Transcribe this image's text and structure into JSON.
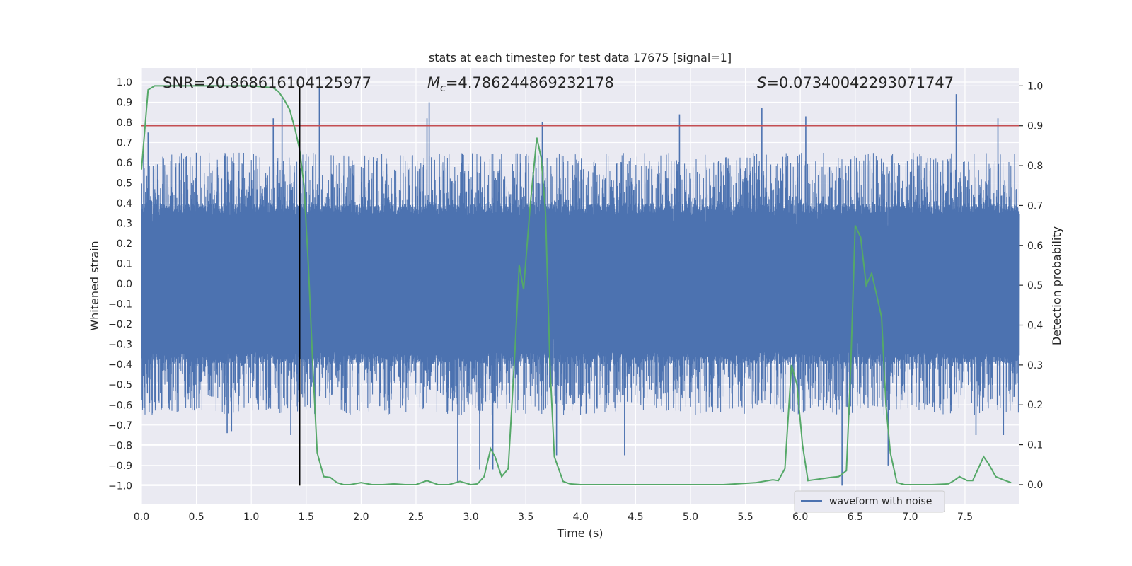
{
  "chart_data": {
    "type": "line",
    "title": "stats at each timestep for test data 17675 [signal=1]",
    "xlabel": "Time (s)",
    "ylabel": "Whitened strain",
    "y2label": "Detection probability",
    "xlim": [
      0.0,
      7.99
    ],
    "ylim": [
      -1.09,
      1.07
    ],
    "y2lim": [
      -0.048,
      1.045
    ],
    "x_ticks": [
      0.0,
      0.5,
      1.0,
      1.5,
      2.0,
      2.5,
      3.0,
      3.5,
      4.0,
      4.5,
      5.0,
      5.5,
      6.0,
      6.5,
      7.0,
      7.5
    ],
    "x_tick_labels": [
      "0.0",
      "0.5",
      "1.0",
      "1.5",
      "2.0",
      "2.5",
      "3.0",
      "3.5",
      "4.0",
      "4.5",
      "5.0",
      "5.5",
      "6.0",
      "6.5",
      "7.0",
      "7.5"
    ],
    "y_ticks": [
      -1.0,
      -0.9,
      -0.8,
      -0.7,
      -0.6,
      -0.5,
      -0.4,
      -0.3,
      -0.2,
      -0.1,
      0.0,
      0.1,
      0.2,
      0.3,
      0.4,
      0.5,
      0.6,
      0.7,
      0.8,
      0.9,
      1.0
    ],
    "y_tick_labels": [
      "−1.0",
      "−0.9",
      "−0.8",
      "−0.7",
      "−0.6",
      "−0.5",
      "−0.4",
      "−0.3",
      "−0.2",
      "−0.1",
      "0.0",
      "0.1",
      "0.2",
      "0.3",
      "0.4",
      "0.5",
      "0.6",
      "0.7",
      "0.8",
      "0.9",
      "1.0"
    ],
    "y2_ticks": [
      0.0,
      0.1,
      0.2,
      0.3,
      0.4,
      0.5,
      0.6,
      0.7,
      0.8,
      0.9,
      1.0
    ],
    "y2_tick_labels": [
      "0.0",
      "0.1",
      "0.2",
      "0.3",
      "0.4",
      "0.5",
      "0.6",
      "0.7",
      "0.8",
      "0.9",
      "1.0"
    ],
    "annotations": {
      "snr": "SNR=20.868616104125977",
      "mc_symbol": "M",
      "mc_sub": "c",
      "mc_value": "=4.786244869232178",
      "s_symbol": "S",
      "s_value": "=0.07340042293071747"
    },
    "legend": {
      "placement": "lower-right",
      "label": "waveform with noise"
    },
    "threshold": {
      "y2": 0.9,
      "color": "#c44e52"
    },
    "marker_line": {
      "x": 1.44,
      "y_from": -1.0,
      "y_to": 0.98,
      "color": "#000000"
    },
    "series": [
      {
        "name": "waveform with noise",
        "axis": "left",
        "color": "#4c72b0",
        "style": "dense-noise",
        "core_amplitude": 0.4,
        "spike_peaks_upper": [
          {
            "x": 0.06,
            "y": 0.75
          },
          {
            "x": 0.2,
            "y": 0.62
          },
          {
            "x": 0.5,
            "y": 0.65
          },
          {
            "x": 1.2,
            "y": 0.82
          },
          {
            "x": 1.28,
            "y": 0.92
          },
          {
            "x": 1.62,
            "y": 0.97
          },
          {
            "x": 2.6,
            "y": 0.82
          },
          {
            "x": 2.62,
            "y": 0.9
          },
          {
            "x": 3.65,
            "y": 0.8
          },
          {
            "x": 4.9,
            "y": 0.84
          },
          {
            "x": 5.65,
            "y": 0.87
          },
          {
            "x": 6.05,
            "y": 0.83
          },
          {
            "x": 7.42,
            "y": 0.94
          },
          {
            "x": 7.8,
            "y": 0.82
          }
        ],
        "spike_peaks_lower": [
          {
            "x": 0.78,
            "y": -0.74
          },
          {
            "x": 0.82,
            "y": -0.73
          },
          {
            "x": 1.36,
            "y": -0.75
          },
          {
            "x": 2.88,
            "y": -0.98
          },
          {
            "x": 3.08,
            "y": -0.92
          },
          {
            "x": 3.2,
            "y": -0.92
          },
          {
            "x": 3.78,
            "y": -0.85
          },
          {
            "x": 4.4,
            "y": -0.85
          },
          {
            "x": 6.38,
            "y": -1.0
          },
          {
            "x": 6.8,
            "y": -0.9
          },
          {
            "x": 7.6,
            "y": -0.75
          },
          {
            "x": 7.85,
            "y": -0.75
          }
        ]
      },
      {
        "name": "detection probability",
        "axis": "right",
        "color": "#55a868",
        "x": [
          0.0,
          0.06,
          0.12,
          0.2,
          0.3,
          0.5,
          0.8,
          1.0,
          1.2,
          1.25,
          1.3,
          1.35,
          1.4,
          1.44,
          1.48,
          1.52,
          1.56,
          1.6,
          1.66,
          1.72,
          1.78,
          1.84,
          1.9,
          2.0,
          2.1,
          2.2,
          2.3,
          2.4,
          2.5,
          2.6,
          2.7,
          2.8,
          2.9,
          3.0,
          3.06,
          3.12,
          3.18,
          3.22,
          3.28,
          3.34,
          3.4,
          3.44,
          3.48,
          3.54,
          3.6,
          3.64,
          3.68,
          3.72,
          3.76,
          3.84,
          3.9,
          4.0,
          4.2,
          4.5,
          5.0,
          5.3,
          5.6,
          5.75,
          5.8,
          5.86,
          5.92,
          5.97,
          6.02,
          6.07,
          6.12,
          6.2,
          6.28,
          6.35,
          6.42,
          6.46,
          6.5,
          6.55,
          6.6,
          6.65,
          6.7,
          6.74,
          6.78,
          6.82,
          6.88,
          6.95,
          7.2,
          7.35,
          7.4,
          7.45,
          7.52,
          7.57,
          7.62,
          7.67,
          7.72,
          7.78,
          7.85,
          7.92
        ],
        "values": [
          0.79,
          0.99,
          1.0,
          1.0,
          1.0,
          1.0,
          1.0,
          1.0,
          0.995,
          0.985,
          0.965,
          0.94,
          0.89,
          0.84,
          0.75,
          0.55,
          0.3,
          0.08,
          0.02,
          0.018,
          0.005,
          0.0,
          0.0,
          0.005,
          0.0,
          0.0,
          0.002,
          0.0,
          0.0,
          0.01,
          0.0,
          0.0,
          0.008,
          0.0,
          0.002,
          0.02,
          0.09,
          0.07,
          0.02,
          0.04,
          0.33,
          0.55,
          0.49,
          0.7,
          0.87,
          0.82,
          0.68,
          0.3,
          0.07,
          0.008,
          0.002,
          0.0,
          0.0,
          0.0,
          0.0,
          0.0,
          0.005,
          0.012,
          0.01,
          0.04,
          0.3,
          0.25,
          0.1,
          0.01,
          0.012,
          0.015,
          0.018,
          0.02,
          0.035,
          0.3,
          0.65,
          0.62,
          0.5,
          0.53,
          0.47,
          0.42,
          0.2,
          0.08,
          0.005,
          0.0,
          0.0,
          0.002,
          0.01,
          0.02,
          0.01,
          0.01,
          0.04,
          0.07,
          0.05,
          0.02,
          0.012,
          0.005
        ]
      }
    ]
  }
}
